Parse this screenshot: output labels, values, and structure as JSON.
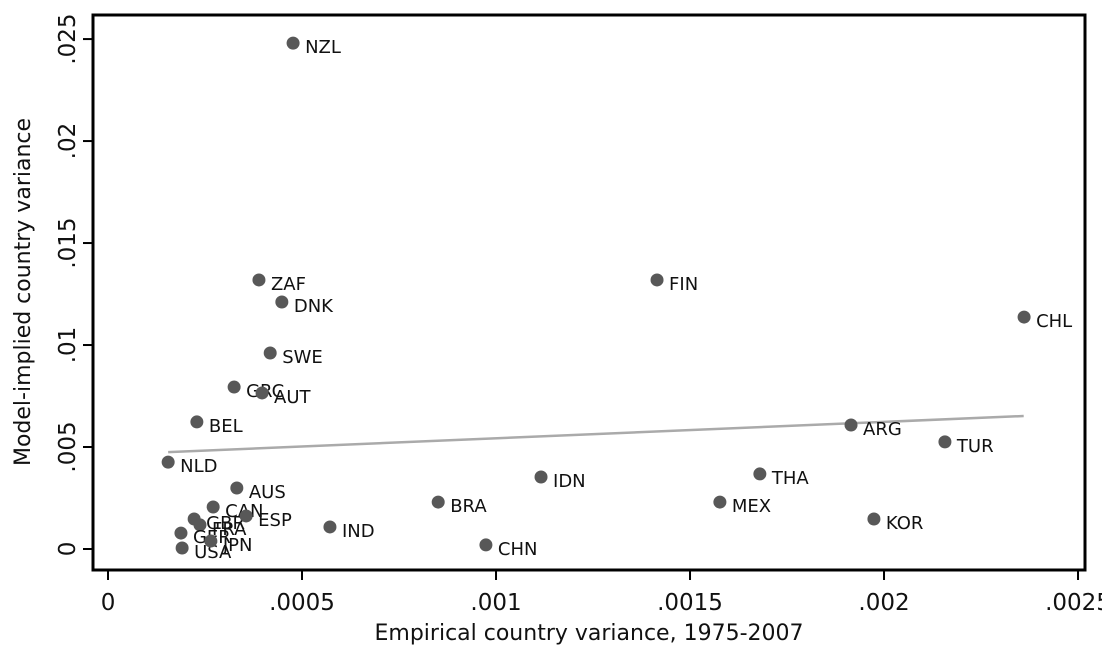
{
  "chart_data": {
    "type": "scatter",
    "xlabel": "Empirical country variance, 1975-2007",
    "ylabel": "Model-implied country variance",
    "labels": [
      "NZL",
      "ZAF",
      "DNK",
      "SWE",
      "GRC",
      "AUT",
      "BEL",
      "NLD",
      "AUS",
      "CAN",
      "GBR",
      "FRA",
      "ESP",
      "GER",
      "USA",
      "JPN",
      "IND",
      "BRA",
      "CHN",
      "IDN",
      "FIN",
      "THA",
      "MEX",
      "ARG",
      "TUR",
      "KOR",
      "CHL"
    ],
    "x": [
      0.000477,
      0.000389,
      0.000448,
      0.000418,
      0.000325,
      0.000397,
      0.000229,
      0.000155,
      0.000332,
      0.000271,
      0.000222,
      0.000237,
      0.000356,
      0.000188,
      0.000191,
      0.000265,
      0.000572,
      0.000851,
      0.000974,
      0.001116,
      0.001415,
      0.00168,
      0.001577,
      0.001915,
      0.002157,
      0.001974,
      0.002361
    ],
    "y": [
      0.0248,
      0.01319,
      0.01211,
      0.00961,
      0.00794,
      0.00765,
      0.00623,
      0.00426,
      0.00299,
      0.00206,
      0.00147,
      0.00118,
      0.00162,
      0.00078,
      5e-05,
      0.00039,
      0.00108,
      0.0023,
      0.0002,
      0.00353,
      0.01319,
      0.00368,
      0.0023,
      0.00608,
      0.00525,
      0.00147,
      0.01137
    ],
    "color": "#585858",
    "fit": {
      "x": [
        0.000155,
        0.00236
      ],
      "y": [
        0.00475,
        0.00652
      ],
      "color": "#aaaaaa"
    },
    "xlim": [
      -3.87e-05,
      0.002518
    ],
    "ylim": [
      -0.00103,
      0.02618
    ],
    "xticks": [
      0,
      {
        "value": 0.0005,
        "label": ".0005"
      },
      {
        "value": 0.001,
        "label": ".001"
      },
      {
        "value": 0.0015,
        "label": ".0015"
      },
      {
        "value": 0.002,
        "label": ".002"
      },
      {
        "value": 0.0025,
        "label": ".0025"
      }
    ],
    "yticks": [
      0,
      {
        "value": 0.005,
        "label": ".005"
      },
      {
        "value": 0.01,
        "label": ".01"
      },
      {
        "value": 0.015,
        "label": ".015"
      },
      {
        "value": 0.02,
        "label": ".02"
      },
      {
        "value": 0.025,
        "label": ".025"
      }
    ]
  }
}
